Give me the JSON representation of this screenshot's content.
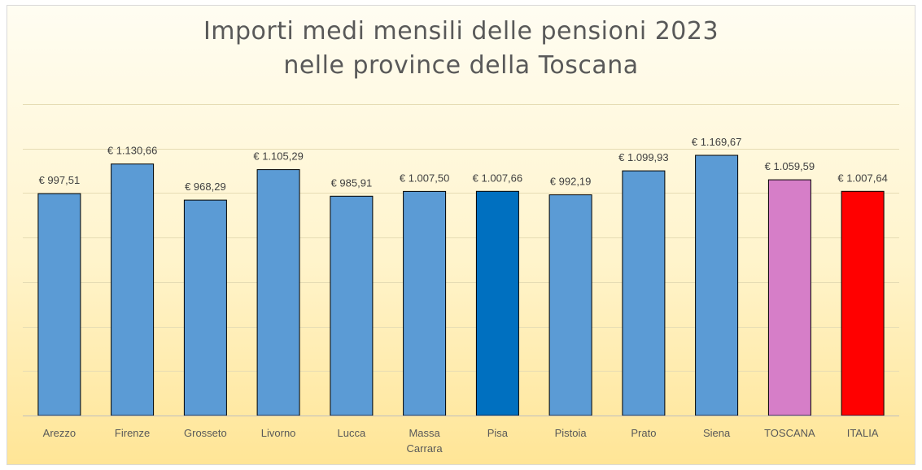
{
  "chart_data": {
    "type": "bar",
    "title": "Importi medi mensili delle pensioni 2023",
    "subtitle": "nelle province della Toscana",
    "categories": [
      "Arezzo",
      "Firenze",
      "Grosseto",
      "Livorno",
      "Lucca",
      "Massa Carrara",
      "Pisa",
      "Pistoia",
      "Prato",
      "Siena",
      "TOSCANA",
      "ITALIA"
    ],
    "category_label_lines": [
      [
        "Arezzo"
      ],
      [
        "Firenze"
      ],
      [
        "Grosseto"
      ],
      [
        "Livorno"
      ],
      [
        "Lucca"
      ],
      [
        "Massa",
        "Carrara"
      ],
      [
        "Pisa"
      ],
      [
        "Pistoia"
      ],
      [
        "Prato"
      ],
      [
        "Siena"
      ],
      [
        "TOSCANA"
      ],
      [
        "ITALIA"
      ]
    ],
    "values": [
      997.51,
      1130.66,
      968.29,
      1105.29,
      985.91,
      1007.5,
      1007.66,
      992.19,
      1099.93,
      1169.67,
      1059.59,
      1007.64
    ],
    "value_labels": [
      "€ 997,51",
      "€ 1.130,66",
      "€ 968,29",
      "€ 1.105,29",
      "€ 985,91",
      "€ 1.007,50",
      "€ 1.007,66",
      "€ 992,19",
      "€ 1.099,93",
      "€ 1.169,67",
      "€ 1.059,59",
      "€ 1.007,64"
    ],
    "bar_colors": [
      "#5b9bd5",
      "#5b9bd5",
      "#5b9bd5",
      "#5b9bd5",
      "#5b9bd5",
      "#5b9bd5",
      "#0070c0",
      "#5b9bd5",
      "#5b9bd5",
      "#5b9bd5",
      "#d67ec8",
      "#ff0000"
    ],
    "xlabel": "",
    "ylabel": "",
    "ylim": [
      0,
      1400
    ],
    "grid_step": 200,
    "grid": true,
    "legend": "none"
  }
}
